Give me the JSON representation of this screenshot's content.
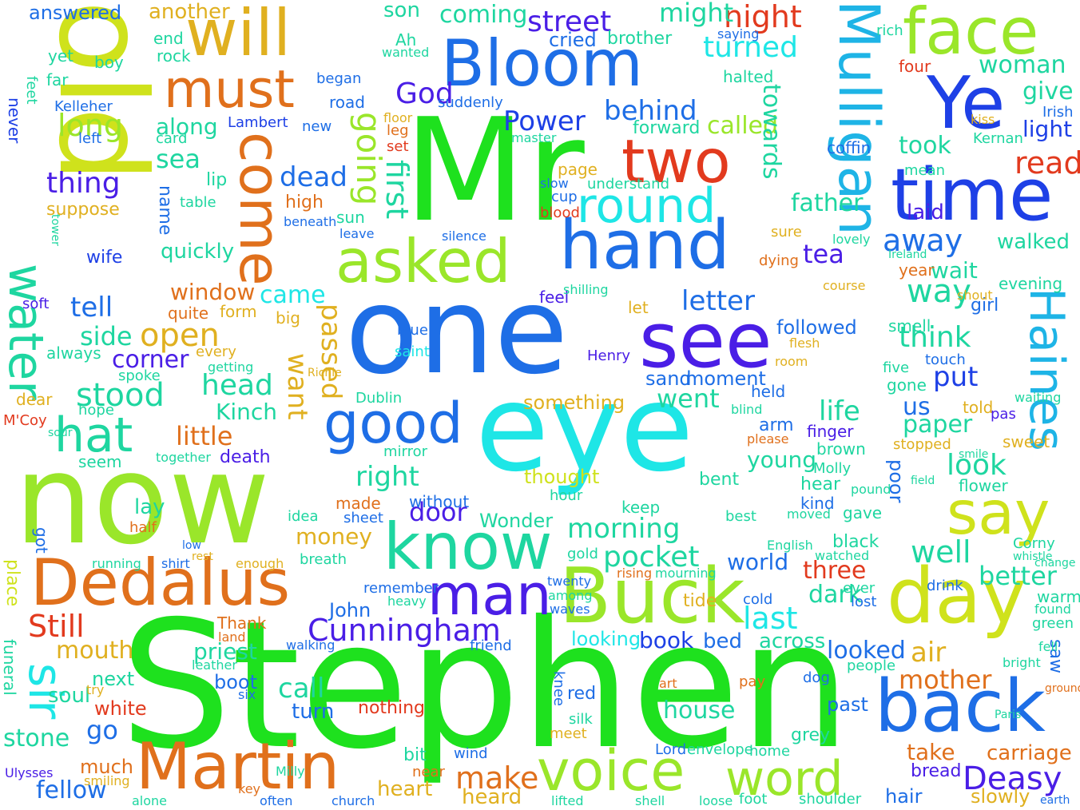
{
  "palette": {
    "background": "#ffffff",
    "green": "#1ee11e",
    "lime": "#9ae62a",
    "yellow_green": "#cfe21c",
    "orange": "#e0701c",
    "gold": "#e0b020",
    "red": "#e23a1e",
    "cyan": "#1ee6e6",
    "blue": "#1e6ee6",
    "deep_blue": "#1e40e6",
    "violet": "#4a1ee6",
    "teal": "#1ed6a0",
    "sky": "#1eb4e6"
  },
  "words": {
    "mr": "Mr",
    "stephen": "Stephen",
    "eye": "eye",
    "one": "one",
    "now": "now",
    "old": "old",
    "mulligan": "Mulligan",
    "will": "will",
    "must": "must",
    "martin": "Martin",
    "dedalus": "Dedalus",
    "buck": "Buck",
    "voice": "voice",
    "back": "back",
    "time": "time",
    "face": "face",
    "day": "day",
    "say": "say",
    "ye": "Ye",
    "haines": "Haines",
    "bloom": "Bloom",
    "hand": "hand",
    "see": "see",
    "asked": "asked",
    "come": "come",
    "good": "good",
    "know": "know",
    "man": "man",
    "two": "two",
    "round": "round",
    "word": "word",
    "water": "water",
    "sir": "sir",
    "hat": "hat",
    "cunningham": "Cunningham",
    "make": "make",
    "deasy": "Deasy",
    "street": "street",
    "night": "night",
    "coming": "coming",
    "answered": "answered",
    "another": "another",
    "might": "might",
    "son": "son",
    "turned": "turned",
    "woman": "woman",
    "god": "God",
    "power": "Power",
    "behind": "behind",
    "called": "called",
    "forward": "forward",
    "read": "read",
    "light": "light",
    "took": "took",
    "give": "give",
    "long": "long",
    "along": "along",
    "sea": "sea",
    "thing": "thing",
    "suppose": "suppose",
    "dead": "dead",
    "going": "going",
    "first": "first",
    "father": "father",
    "towards": "towards",
    "away": "away",
    "walked": "walked",
    "tea": "tea",
    "laid": "laid",
    "wait": "wait",
    "quickly": "quickly",
    "wife": "wife",
    "came": "came",
    "tell": "tell",
    "window": "window",
    "letter": "letter",
    "way": "way",
    "side": "side",
    "open": "open",
    "corner": "corner",
    "passed": "passed",
    "think": "think",
    "followed": "followed",
    "stood": "stood",
    "head": "head",
    "want": "want",
    "went": "went",
    "put": "put",
    "little": "little",
    "kinch": "Kinch",
    "life": "life",
    "us": "us",
    "paper": "paper",
    "look": "look",
    "young": "young",
    "death": "death",
    "right": "right",
    "door": "door",
    "morning": "morning",
    "pocket": "pocket",
    "well": "well",
    "money": "money",
    "world": "world",
    "last": "last",
    "three": "three",
    "better": "better",
    "still": "Still",
    "mouth": "mouth",
    "priest": "priest",
    "john": "John",
    "book": "book",
    "bed": "bed",
    "across": "across",
    "looked": "looked",
    "air": "air",
    "mother": "mother",
    "dark": "dark",
    "looking": "looking",
    "next": "next",
    "white": "white",
    "go": "go",
    "soul": "soul",
    "boot": "boot",
    "call": "call",
    "turn": "turn",
    "house": "house",
    "nothing": "nothing",
    "past": "past",
    "stone": "stone",
    "fellow": "fellow",
    "much": "much",
    "heart": "heart",
    "heard": "heard",
    "take": "take",
    "carriage": "carriage",
    "hair": "hair",
    "slowly": "slowly",
    "bread": "bread",
    "funeral": "funeral",
    "place": "place",
    "something": "something",
    "thought": "thought",
    "wonder": "Wonder",
    "lay": "lay",
    "sand": "sand",
    "moment": "moment",
    "kelleher": "Kelleher",
    "lambert": "Lambert",
    "boy": "boy",
    "end": "end",
    "rock": "rock",
    "began": "began",
    "road": "road",
    "never": "never",
    "left": "left",
    "card": "card",
    "new": "new",
    "high": "high",
    "sun": "sun",
    "table": "table",
    "name": "name",
    "lip": "lip",
    "always": "always",
    "spoke": "spoke",
    "form": "form",
    "quite": "quite",
    "big": "big",
    "feel": "feel",
    "soft": "soft",
    "let": "let",
    "henry": "Henry",
    "dublin": "Dublin",
    "blue": "blue",
    "saint": "saint",
    "held": "held",
    "arm": "arm",
    "finger": "finger",
    "brown": "brown",
    "smell": "smell",
    "year": "year",
    "evening": "evening",
    "girl": "girl",
    "gone": "gone",
    "told": "told",
    "sweet": "sweet",
    "poor": "poor",
    "bent": "bent",
    "hear": "hear",
    "kind": "kind",
    "gave": "gave",
    "keep": "keep",
    "black": "black",
    "watched": "watched",
    "ever": "ever",
    "lost": "lost",
    "tide": "tide",
    "cold": "cold",
    "drink": "drink",
    "warm": "warm",
    "found": "found",
    "green": "green",
    "saw": "saw",
    "english": "English",
    "remember": "remember",
    "thank": "Thank",
    "friend": "friend",
    "walking": "walking",
    "land": "land",
    "seem": "seem",
    "together": "together",
    "got": "got",
    "half": "half",
    "made": "made",
    "sheet": "sheet",
    "idea": "idea",
    "without": "without",
    "hour": "hour",
    "dear": "dear",
    "mcoy": "M'Coy",
    "hope": "hope",
    "mirror": "mirror",
    "every": "every",
    "getting": "getting",
    "shilling": "shilling",
    "silence": "silence",
    "leave": "leave",
    "beneath": "beneath",
    "blood": "blood",
    "slow": "slow",
    "cup": "cup",
    "understand": "understand",
    "page": "page",
    "cried": "cried",
    "brother": "brother",
    "halted": "halted",
    "saying": "saying",
    "rich": "rich",
    "four": "four",
    "ah": "Ah",
    "wanted": "wanted",
    "yet": "yet",
    "far": "far",
    "far_small": "feet",
    "coffin": "coffin",
    "kernan": "Kernan",
    "mean": "mean",
    "lovely": "lovely",
    "course": "course",
    "dying": "dying",
    "sure": "sure",
    "shout": "shout",
    "fool": "five",
    "touch": "touch",
    "stopped": "stopped",
    "molly": "Molly",
    "flower": "flower",
    "pound": "pound",
    "moved": "moved",
    "best": "best",
    "gold": "gold",
    "rising": "rising",
    "mourning": "mourning",
    "gray": "grey",
    "dog": "dog",
    "pay": "pay",
    "art": "art",
    "red": "red",
    "knee": "knee",
    "silk": "silk",
    "meet": "meet",
    "bit": "bit",
    "near": "near",
    "wind": "wind",
    "lord": "Lord",
    "envelope": "envelope",
    "home": "home",
    "face_small": "people",
    "bright": "bright",
    "fell": "fell",
    "ground": "ground",
    "paris": "Paris",
    "earth": "earth",
    "shoulder": "shoulder",
    "foot": "foot",
    "loose": "loose",
    "shell": "shell",
    "lifted": "lifted",
    "church": "church",
    "often": "often",
    "alone": "alone",
    "ulysses": "Ulysses",
    "milly": "Milly",
    "key": "key",
    "smiling": "smiling",
    "try": "try",
    "leather": "leather",
    "six": "six",
    "twenty": "twenty",
    "among": "among",
    "waves": "waves",
    "heavy": "heavy",
    "shirt": "shirt",
    "enough": "enough",
    "breath": "breath",
    "running": "running",
    "rest": "rest",
    "low": "low",
    "richie": "Richie",
    "flesh": "flesh",
    "blind": "blind",
    "room": "room",
    "sorrow": "sour",
    "please": "please",
    "smile": "smile",
    "field": "field",
    "corny": "Corny",
    "whistle": "whistle",
    "change": "change",
    "waiting": "waiting",
    "pas": "pas",
    "leg": "leg",
    "set": "set",
    "floor": "floor",
    "suddenly": "suddenly",
    "master": "master",
    "kiss": "kiss",
    "irish": "Irish",
    "ireland": "Ireland",
    "tower": "tower"
  }
}
